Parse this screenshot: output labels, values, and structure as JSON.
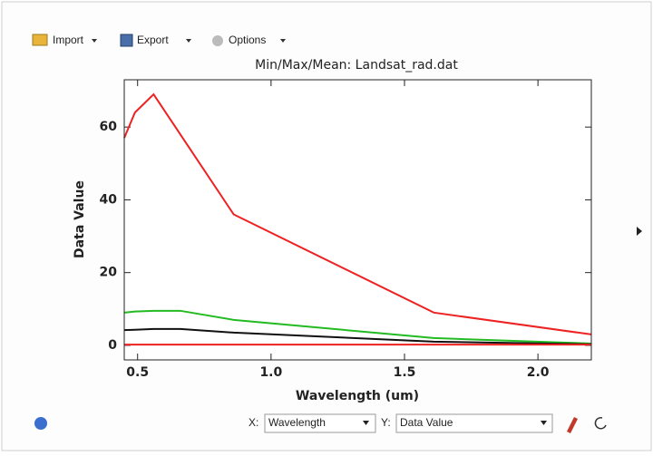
{
  "toolbar": {
    "import": "Import",
    "export": "Export",
    "options": "Options"
  },
  "chart_data": {
    "type": "line",
    "title": "Min/Max/Mean: Landsat_rad.dat",
    "x_label": "Wavelength (um)",
    "y_label": "Data Value",
    "x": [
      0.45,
      0.49,
      0.56,
      0.66,
      0.86,
      1.61,
      2.2
    ],
    "series": [
      {
        "color": "#ee2222",
        "values": [
          57,
          64,
          69,
          58,
          36,
          9,
          3
        ]
      },
      {
        "color": "#22bb22",
        "values": [
          9,
          9.3,
          9.5,
          9.5,
          7,
          2,
          0.5
        ]
      },
      {
        "color": "#111111",
        "values": [
          4.2,
          4.3,
          4.5,
          4.5,
          3.5,
          1,
          0.3
        ]
      },
      {
        "color": "#ee2222",
        "values": [
          0.2,
          0.2,
          0.2,
          0.2,
          0.2,
          0.2,
          0.2
        ]
      }
    ],
    "xlim": [
      0.45,
      2.2
    ],
    "ylim": [
      -4,
      73
    ],
    "xticks": [
      0.5,
      {
        "value": 1,
        "label": "1.0"
      },
      1.5,
      {
        "value": 2,
        "label": "2.0"
      }
    ],
    "yticks": [
      0,
      20,
      40,
      60
    ]
  },
  "controls": {
    "x_label": "X:",
    "x_value": "Wavelength",
    "y_label": "Y:",
    "y_value": "Data Value"
  }
}
